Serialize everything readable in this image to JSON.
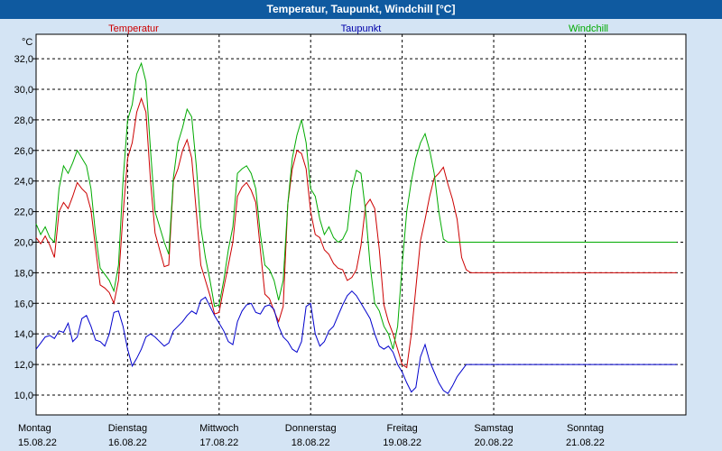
{
  "chart_data": {
    "type": "line",
    "title": "Temperatur, Taupunkt, Windchill [°C]",
    "y_unit": "°C",
    "ylim": [
      8.7,
      33.6
    ],
    "y_ticks": [
      "32,0",
      "30,0",
      "28,0",
      "26,0",
      "24,0",
      "22,0",
      "20,0",
      "18,0",
      "16,0",
      "14,0",
      "12,0",
      "10,0"
    ],
    "y_tick_values": [
      32,
      30,
      28,
      26,
      24,
      22,
      20,
      18,
      16,
      14,
      12,
      10
    ],
    "x_unit": "days since 15.08.22 00:00",
    "xlim": [
      0,
      7.1
    ],
    "x_labels": [
      {
        "day": "Montag",
        "date": "15.08.22",
        "x": 0
      },
      {
        "day": "Dienstag",
        "date": "16.08.22",
        "x": 1
      },
      {
        "day": "Mittwoch",
        "date": "17.08.22",
        "x": 2
      },
      {
        "day": "Donnerstag",
        "date": "18.08.22",
        "x": 3
      },
      {
        "day": "Freitag",
        "date": "19.08.22",
        "x": 4
      },
      {
        "day": "Samstag",
        "date": "20.08.22",
        "x": 5
      },
      {
        "day": "Sonntag",
        "date": "21.08.22",
        "x": 6
      }
    ],
    "grid": true,
    "series": [
      {
        "name": "Temperatur",
        "color": "#cc0000",
        "x": [
          0,
          0.05,
          0.1,
          0.15,
          0.2,
          0.25,
          0.3,
          0.35,
          0.4,
          0.45,
          0.5,
          0.55,
          0.6,
          0.65,
          0.7,
          0.75,
          0.8,
          0.85,
          0.9,
          0.95,
          1.0,
          1.05,
          1.1,
          1.15,
          1.2,
          1.25,
          1.3,
          1.35,
          1.4,
          1.45,
          1.5,
          1.55,
          1.6,
          1.65,
          1.7,
          1.75,
          1.8,
          1.85,
          1.9,
          1.95,
          2.0,
          2.05,
          2.1,
          2.15,
          2.2,
          2.25,
          2.3,
          2.35,
          2.4,
          2.45,
          2.5,
          2.55,
          2.6,
          2.65,
          2.7,
          2.75,
          2.8,
          2.85,
          2.9,
          2.95,
          3.0,
          3.05,
          3.1,
          3.15,
          3.2,
          3.25,
          3.3,
          3.35,
          3.4,
          3.45,
          3.5,
          3.55,
          3.6,
          3.65,
          3.7,
          3.75,
          3.8,
          3.85,
          3.9,
          3.95,
          4.0,
          4.05,
          4.1,
          4.15,
          4.2,
          4.25,
          4.3,
          4.35,
          4.4,
          4.45,
          4.5,
          4.55,
          4.6,
          4.65,
          4.7,
          4.75,
          4.8,
          4.85,
          4.9,
          4.95,
          5.0,
          5.05,
          5.1,
          5.15,
          5.2,
          5.25,
          5.3,
          5.35,
          5.4,
          5.45,
          5.5,
          5.55,
          5.6,
          5.65,
          5.7,
          5.75,
          5.8,
          5.85,
          5.9,
          5.95,
          6.0,
          6.05,
          6.1,
          6.15,
          6.2,
          6.25,
          6.3,
          6.35,
          6.4,
          6.45,
          6.5,
          6.55,
          6.6,
          6.65,
          6.7,
          6.75,
          6.8,
          6.85,
          6.9,
          6.95,
          7.0
        ],
        "values": [
          20.3,
          19.9,
          20.4,
          19.8,
          19.0,
          22.0,
          22.6,
          22.2,
          23.0,
          23.9,
          23.5,
          23.2,
          22.1,
          19.6,
          17.2,
          17.0,
          16.7,
          16.0,
          17.5,
          21.8,
          25.5,
          26.5,
          28.5,
          29.4,
          28.5,
          24.0,
          20.6,
          19.5,
          18.4,
          18.5,
          24.0,
          24.8,
          26.0,
          26.7,
          25.5,
          22.0,
          18.5,
          17.5,
          16.5,
          15.3,
          15.4,
          17.0,
          18.5,
          20.0,
          23.0,
          23.6,
          23.9,
          23.4,
          22.6,
          19.5,
          16.6,
          16.3,
          15.5,
          14.8,
          15.8,
          22.5,
          24.8,
          26.0,
          25.8,
          24.8,
          22.0,
          20.5,
          20.3,
          19.5,
          19.2,
          18.6,
          18.3,
          18.2,
          17.5,
          17.7,
          18.2,
          19.8,
          22.4,
          22.8,
          22.2,
          19.5,
          15.9,
          14.8,
          14.0,
          13.0,
          12.0,
          11.8,
          14.0,
          17.0,
          20.1,
          21.5,
          23.0,
          24.2,
          24.5,
          24.9,
          23.8,
          22.8,
          21.5,
          19.0,
          18.2,
          18.0,
          18.0,
          18.0,
          18.0,
          18.0,
          18.0,
          18.0,
          18.0,
          18.0,
          18.0,
          18.0,
          18.0,
          18.0,
          18.0,
          18.0,
          18.0,
          18.0,
          18.0,
          18.0,
          18.0,
          18.0,
          18.0,
          18.0,
          18.0,
          18.0,
          18.0,
          18.0,
          18.0,
          18.0,
          18.0,
          18.0,
          18.0,
          18.0,
          18.0,
          18.0,
          18.0,
          18.0,
          18.0,
          18.0,
          18.0,
          18.0,
          18.0,
          18.0,
          18.0,
          18.0,
          18.0
        ]
      },
      {
        "name": "Taupunkt",
        "color": "#000099",
        "x": [
          0,
          0.05,
          0.1,
          0.15,
          0.2,
          0.25,
          0.3,
          0.35,
          0.4,
          0.45,
          0.5,
          0.55,
          0.6,
          0.65,
          0.7,
          0.75,
          0.8,
          0.85,
          0.9,
          0.95,
          1.0,
          1.05,
          1.1,
          1.15,
          1.2,
          1.25,
          1.3,
          1.35,
          1.4,
          1.45,
          1.5,
          1.55,
          1.6,
          1.65,
          1.7,
          1.75,
          1.8,
          1.85,
          1.9,
          1.95,
          2.0,
          2.05,
          2.1,
          2.15,
          2.2,
          2.25,
          2.3,
          2.35,
          2.4,
          2.45,
          2.5,
          2.55,
          2.6,
          2.65,
          2.7,
          2.75,
          2.8,
          2.85,
          2.9,
          2.95,
          3.0,
          3.05,
          3.1,
          3.15,
          3.2,
          3.25,
          3.3,
          3.35,
          3.4,
          3.45,
          3.5,
          3.55,
          3.6,
          3.65,
          3.7,
          3.75,
          3.8,
          3.85,
          3.9,
          3.95,
          4.0,
          4.05,
          4.1,
          4.15,
          4.2,
          4.25,
          4.3,
          4.35,
          4.4,
          4.45,
          4.5,
          4.55,
          4.6,
          4.65,
          4.7,
          4.75,
          4.8,
          4.85,
          4.9,
          4.95,
          5.0,
          5.05,
          5.1,
          5.15,
          5.2,
          5.25,
          5.3,
          5.35,
          5.4,
          5.45,
          5.5,
          5.55,
          5.6,
          5.65,
          5.7,
          5.75,
          5.8,
          5.85,
          5.9,
          5.95,
          6.0,
          6.05,
          6.1,
          6.15,
          6.2,
          6.25,
          6.3,
          6.35,
          6.4,
          6.45,
          6.5,
          6.55,
          6.6,
          6.65,
          6.7,
          6.75,
          6.8,
          6.85,
          6.9,
          6.95,
          7.0
        ],
        "values": [
          13.0,
          13.4,
          13.8,
          13.9,
          13.7,
          14.2,
          14.1,
          14.7,
          13.5,
          13.8,
          15.0,
          15.2,
          14.5,
          13.6,
          13.5,
          13.2,
          14.0,
          15.4,
          15.5,
          14.5,
          13.0,
          11.9,
          12.4,
          13.0,
          13.8,
          14.0,
          13.8,
          13.5,
          13.2,
          13.4,
          14.2,
          14.5,
          14.8,
          15.2,
          15.5,
          15.3,
          16.2,
          16.4,
          15.8,
          15.2,
          14.7,
          14.2,
          13.5,
          13.3,
          14.8,
          15.5,
          15.9,
          16.0,
          15.4,
          15.3,
          15.8,
          15.9,
          15.6,
          14.5,
          13.8,
          13.5,
          13.0,
          12.8,
          13.5,
          15.8,
          16.0,
          14.0,
          13.2,
          13.5,
          14.2,
          14.5,
          15.2,
          15.9,
          16.5,
          16.8,
          16.5,
          16.0,
          15.5,
          15.0,
          14.0,
          13.2,
          13.0,
          13.2,
          12.8,
          12.0,
          11.5,
          10.8,
          10.2,
          10.5,
          12.5,
          13.3,
          12.2,
          11.5,
          10.8,
          10.3,
          10.1,
          10.6,
          11.2,
          11.6,
          12.0,
          12.0,
          12.0,
          12.0,
          12.0,
          12.0,
          12.0,
          12.0,
          12.0,
          12.0,
          12.0,
          12.0,
          12.0,
          12.0,
          12.0,
          12.0,
          12.0,
          12.0,
          12.0,
          12.0,
          12.0,
          12.0,
          12.0,
          12.0,
          12.0,
          12.0,
          12.0,
          12.0,
          12.0,
          12.0,
          12.0,
          12.0,
          12.0,
          12.0,
          12.0,
          12.0,
          12.0,
          12.0,
          12.0,
          12.0,
          12.0,
          12.0,
          12.0,
          12.0,
          12.0,
          12.0,
          12.0
        ]
      },
      {
        "name": "Windchill",
        "color": "#009900",
        "x": [
          0,
          0.05,
          0.1,
          0.15,
          0.2,
          0.25,
          0.3,
          0.35,
          0.4,
          0.45,
          0.5,
          0.55,
          0.6,
          0.65,
          0.7,
          0.75,
          0.8,
          0.85,
          0.9,
          0.95,
          1.0,
          1.05,
          1.1,
          1.15,
          1.2,
          1.25,
          1.3,
          1.35,
          1.4,
          1.45,
          1.5,
          1.55,
          1.6,
          1.65,
          1.7,
          1.75,
          1.8,
          1.85,
          1.9,
          1.95,
          2.0,
          2.05,
          2.1,
          2.15,
          2.2,
          2.25,
          2.3,
          2.35,
          2.4,
          2.45,
          2.5,
          2.55,
          2.6,
          2.65,
          2.7,
          2.75,
          2.8,
          2.85,
          2.9,
          2.95,
          3.0,
          3.05,
          3.1,
          3.15,
          3.2,
          3.25,
          3.3,
          3.35,
          3.4,
          3.45,
          3.5,
          3.55,
          3.6,
          3.65,
          3.7,
          3.75,
          3.8,
          3.85,
          3.9,
          3.95,
          4.0,
          4.05,
          4.1,
          4.15,
          4.2,
          4.25,
          4.3,
          4.35,
          4.4,
          4.45,
          4.5,
          4.55,
          4.6,
          4.65,
          4.7,
          4.75,
          4.8,
          4.85,
          4.9,
          4.95,
          5.0,
          5.05,
          5.1,
          5.15,
          5.2,
          5.25,
          5.3,
          5.35,
          5.4,
          5.45,
          5.5,
          5.55,
          5.6,
          5.65,
          5.7,
          5.75,
          5.8,
          5.85,
          5.9,
          5.95,
          6.0,
          6.05,
          6.1,
          6.15,
          6.2,
          6.25,
          6.3,
          6.35,
          6.4,
          6.45,
          6.5,
          6.55,
          6.6,
          6.65,
          6.7,
          6.75,
          6.8,
          6.85,
          6.9,
          6.95,
          7.0
        ],
        "values": [
          21.2,
          20.5,
          21.0,
          20.3,
          20.0,
          23.5,
          25.0,
          24.5,
          25.2,
          26.0,
          25.5,
          25.0,
          23.5,
          20.5,
          18.3,
          17.9,
          17.5,
          16.8,
          18.5,
          24.0,
          28.0,
          29.0,
          31.0,
          31.7,
          30.5,
          26.0,
          22.0,
          21.0,
          20.0,
          19.2,
          24.2,
          26.5,
          27.5,
          28.7,
          28.2,
          25.0,
          21.0,
          19.0,
          17.5,
          15.8,
          15.9,
          17.5,
          19.5,
          21.0,
          24.5,
          24.8,
          25.0,
          24.5,
          23.5,
          20.5,
          18.5,
          18.2,
          17.5,
          16.2,
          17.5,
          22.5,
          25.5,
          27.0,
          28.0,
          26.5,
          23.5,
          23.0,
          21.5,
          20.5,
          21.0,
          20.3,
          20.0,
          20.2,
          20.8,
          23.5,
          24.7,
          24.5,
          22.0,
          18.5,
          16.0,
          15.5,
          14.5,
          14.0,
          13.0,
          14.5,
          18.5,
          22.0,
          24.0,
          25.5,
          26.5,
          27.1,
          26.0,
          24.5,
          22.0,
          20.2,
          20.0,
          20.0,
          20.0,
          20.0,
          20.0,
          20.0,
          20.0,
          20.0,
          20.0,
          20.0,
          20.0,
          20.0,
          20.0,
          20.0,
          20.0,
          20.0,
          20.0,
          20.0,
          20.0,
          20.0,
          20.0,
          20.0,
          20.0,
          20.0,
          20.0,
          20.0,
          20.0,
          20.0,
          20.0,
          20.0,
          20.0,
          20.0,
          20.0,
          20.0,
          20.0,
          20.0,
          20.0,
          20.0,
          20.0,
          20.0,
          20.0,
          20.0,
          20.0,
          20.0,
          20.0,
          20.0,
          20.0,
          20.0,
          20.0,
          20.0,
          20.0
        ]
      }
    ]
  }
}
